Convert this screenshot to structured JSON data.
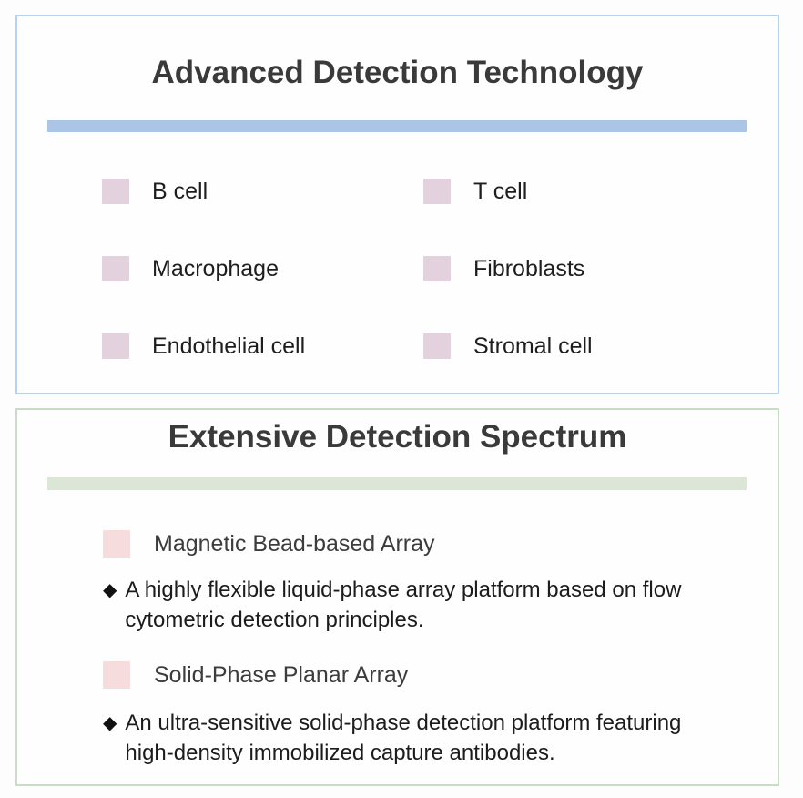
{
  "page": {
    "background": "#fdfdfd"
  },
  "panels": {
    "detection_technology": {
      "title": "Advanced Detection Technology",
      "border_color": "#b6d2ee",
      "accent_bar_color": "#abc5e6",
      "swatch_color": "#e4d1de",
      "cell_types": [
        "B cell",
        "T cell",
        "Macrophage",
        "Fibroblasts",
        "Endothelial cell",
        "Stromal cell"
      ]
    },
    "detection_spectrum": {
      "title": "Extensive Detection Spectrum",
      "border_color": "#c9dcc6",
      "accent_bar_color": "#dce6d6",
      "swatch_color": "#f6dcdc",
      "bullet_glyph": "◆",
      "platforms": [
        {
          "name": "Magnetic Bead-based Array",
          "description": "A highly flexible liquid-phase array platform based on flow cytometric detection principles."
        },
        {
          "name": "Solid-Phase Planar Array",
          "description": "An ultra-sensitive solid-phase detection platform featuring high-density immobilized capture antibodies."
        }
      ]
    }
  }
}
